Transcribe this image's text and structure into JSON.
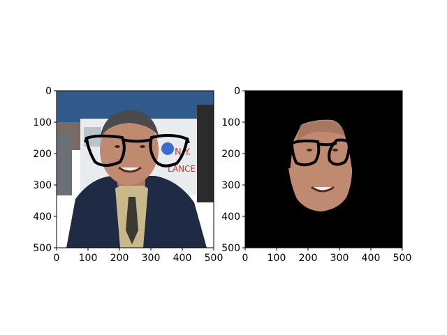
{
  "chart_data": [
    {
      "type": "image",
      "title": "",
      "xlabel": "",
      "ylabel": "",
      "xlim": [
        0,
        500
      ],
      "ylim": [
        500,
        0
      ],
      "x_ticks": [
        "0",
        "100",
        "200",
        "300",
        "400",
        "500"
      ],
      "y_ticks": [
        "0",
        "100",
        "200",
        "300",
        "400",
        "500"
      ],
      "content": "photo of smiling man in dark jacket and tie with overlaid black glasses",
      "overlays": [
        "black-glasses"
      ]
    },
    {
      "type": "image",
      "title": "",
      "xlabel": "",
      "ylabel": "",
      "xlim": [
        0,
        500
      ],
      "ylim": [
        500,
        0
      ],
      "x_ticks": [
        "0",
        "100",
        "200",
        "300",
        "400",
        "500"
      ],
      "y_ticks": [
        "0",
        "100",
        "200",
        "300",
        "400",
        "500"
      ],
      "content": "segmented face region with glasses on black background",
      "background_color": "#000000",
      "overlays": [
        "black-glasses"
      ]
    }
  ],
  "colors": {
    "axis": "#000000",
    "mask_background": "#000000",
    "glasses": "#000000",
    "sky": "#2f5a8a",
    "jacket": "#1f2a44",
    "skin": "#c08a70",
    "hair": "#4a4a4a"
  }
}
